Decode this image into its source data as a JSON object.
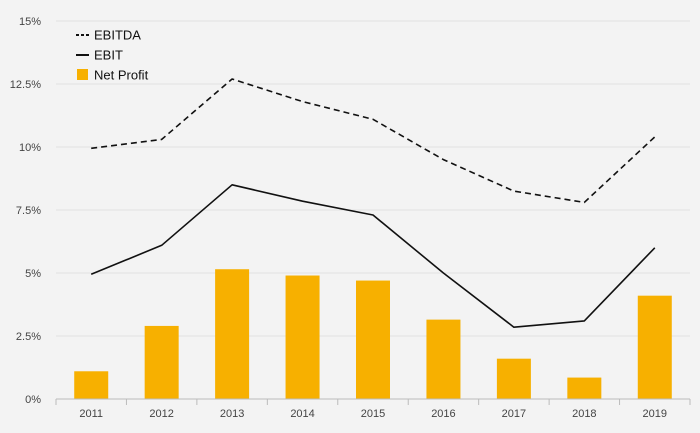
{
  "chart_data": {
    "type": "bar",
    "title": "",
    "xlabel": "",
    "ylabel": "",
    "categories": [
      "2011",
      "2012",
      "2013",
      "2014",
      "2015",
      "2016",
      "2017",
      "2018",
      "2019"
    ],
    "ylim": [
      0,
      15
    ],
    "y_ticks": [
      0,
      2.5,
      5,
      7.5,
      10,
      12.5,
      15
    ],
    "y_tick_labels": [
      "0%",
      "2.5%",
      "5%",
      "7.5%",
      "10%",
      "12.5%",
      "15%"
    ],
    "grid": true,
    "legend_position": "top-left",
    "series": [
      {
        "name": "EBITDA",
        "type": "line",
        "style": "dashed",
        "color": "#111111",
        "values": [
          9.95,
          10.3,
          12.7,
          11.8,
          11.1,
          9.5,
          8.25,
          7.8,
          10.4
        ]
      },
      {
        "name": "EBIT",
        "type": "line",
        "style": "solid",
        "color": "#111111",
        "values": [
          4.95,
          6.1,
          8.5,
          7.85,
          7.3,
          5.0,
          2.85,
          3.1,
          6.0
        ]
      },
      {
        "name": "Net Profit",
        "type": "bar",
        "color": "#f7b000",
        "values": [
          1.1,
          2.9,
          5.15,
          4.9,
          4.7,
          3.15,
          1.6,
          0.85,
          4.1
        ]
      }
    ]
  }
}
